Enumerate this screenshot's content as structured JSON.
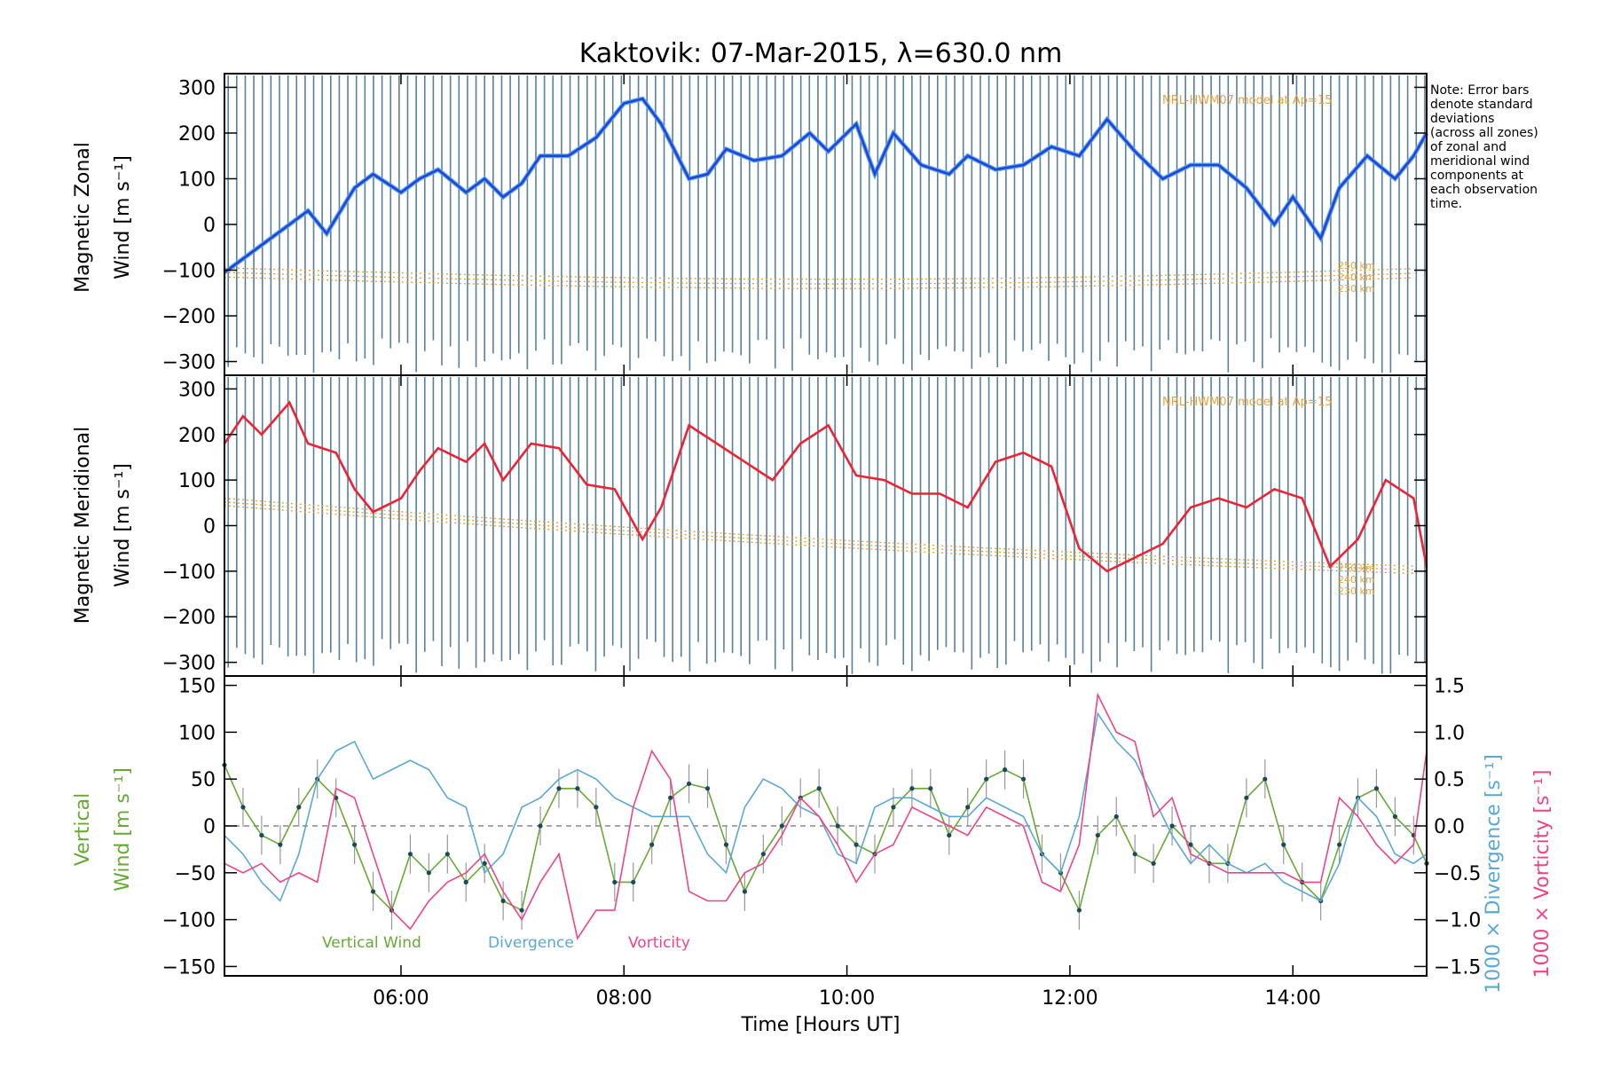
{
  "title": "Kaktovik: 07-Mar-2015, λ=630.0 nm",
  "note": [
    "Note: Error bars",
    "denote standard",
    "deviations",
    "(across all zones)",
    "of zonal and",
    "meridional wind",
    "components at",
    "each observation",
    "time."
  ],
  "model_label": "NRL-HWM07 model at Ap=15",
  "model_altitudes": [
    "250 km",
    "240 km",
    "230 km"
  ],
  "xlabel": "Time [Hours UT]",
  "xticks": [
    "06:00",
    "08:00",
    "10:00",
    "12:00",
    "14:00"
  ],
  "panels": {
    "zonal": {
      "ylabel_1": "Magnetic Zonal",
      "ylabel_2": "Wind [m s⁻¹]",
      "yticks": [
        "300",
        "200",
        "100",
        "0",
        "−100",
        "−200",
        "−300"
      ]
    },
    "meridional": {
      "ylabel_1": "Magnetic Meridional",
      "ylabel_2": "Wind [m s⁻¹]",
      "yticks": [
        "300",
        "200",
        "100",
        "0",
        "−100",
        "−200",
        "−300"
      ]
    },
    "vertical": {
      "ylabel_1": "Vertical",
      "ylabel_2": "Wind [m s⁻¹]",
      "yticks": [
        "150",
        "100",
        "50",
        "0",
        "−50",
        "−100",
        "−150"
      ],
      "right_ticks": [
        "1.5",
        "1.0",
        "0.5",
        "0.0",
        "−0.5",
        "−1.0",
        "−1.5"
      ],
      "right_label_div": "1000 × Divergence [s⁻¹]",
      "right_label_vort": "1000 × Vorticity [s⁻¹]",
      "legend": [
        "Vertical Wind",
        "Divergence",
        "Vorticity"
      ]
    }
  },
  "colors": {
    "zonal": "#2244dd",
    "zonal_light": "#5aa8e6",
    "meridional": "#ee2233",
    "vertical": "#66aa33",
    "divergence": "#5aa8d8",
    "vorticity": "#ee4488",
    "model": "#e8a23c",
    "errorbar": "#3a6a8c"
  },
  "chart_data": [
    {
      "type": "line",
      "title": "Kaktovik: 07-Mar-2015, λ=630.0 nm",
      "ylabel": "Magnetic Zonal Wind [m s⁻¹]",
      "ylim": [
        -330,
        330
      ],
      "xlim": [
        "04:25",
        "15:12"
      ],
      "x": [
        "04:25",
        "04:40",
        "05:00",
        "05:10",
        "05:20",
        "05:35",
        "05:45",
        "06:00",
        "06:10",
        "06:20",
        "06:35",
        "06:45",
        "06:55",
        "07:05",
        "07:15",
        "07:30",
        "07:45",
        "08:00",
        "08:10",
        "08:20",
        "08:35",
        "08:45",
        "08:55",
        "09:10",
        "09:25",
        "09:40",
        "09:50",
        "10:05",
        "10:15",
        "10:25",
        "10:40",
        "10:55",
        "11:05",
        "11:20",
        "11:35",
        "11:50",
        "12:05",
        "12:20",
        "12:35",
        "12:50",
        "13:05",
        "13:20",
        "13:35",
        "13:50",
        "14:00",
        "14:15",
        "14:25",
        "14:40",
        "14:55",
        "15:05",
        "15:12"
      ],
      "series": [
        {
          "values": [
            -105,
            -60,
            0,
            30,
            -20,
            80,
            110,
            70,
            100,
            120,
            70,
            100,
            60,
            90,
            150,
            150,
            190,
            265,
            275,
            220,
            100,
            110,
            165,
            140,
            150,
            200,
            160,
            220,
            110,
            200,
            130,
            110,
            150,
            120,
            130,
            170,
            150,
            230,
            160,
            100,
            130,
            130,
            80,
            0,
            60,
            -30,
            80,
            150,
            100,
            150,
            200
          ]
        }
      ]
    },
    {
      "type": "line",
      "ylabel": "Magnetic Meridional Wind [m s⁻¹]",
      "ylim": [
        -330,
        330
      ],
      "xlim": [
        "04:25",
        "15:12"
      ],
      "x": [
        "04:25",
        "04:35",
        "04:45",
        "05:00",
        "05:10",
        "05:25",
        "05:35",
        "05:45",
        "06:00",
        "06:10",
        "06:20",
        "06:35",
        "06:45",
        "06:55",
        "07:10",
        "07:25",
        "07:40",
        "07:55",
        "08:10",
        "08:20",
        "08:35",
        "08:50",
        "09:05",
        "09:20",
        "09:35",
        "09:50",
        "10:05",
        "10:20",
        "10:35",
        "10:50",
        "11:05",
        "11:20",
        "11:35",
        "11:50",
        "12:05",
        "12:20",
        "12:35",
        "12:50",
        "13:05",
        "13:20",
        "13:35",
        "13:50",
        "14:05",
        "14:20",
        "14:35",
        "14:50",
        "15:05",
        "15:12"
      ],
      "series": [
        {
          "values": [
            180,
            240,
            200,
            270,
            180,
            160,
            80,
            30,
            60,
            120,
            170,
            140,
            180,
            100,
            180,
            170,
            90,
            80,
            -30,
            40,
            220,
            180,
            140,
            100,
            180,
            220,
            110,
            100,
            70,
            70,
            40,
            140,
            160,
            130,
            -50,
            -100,
            -70,
            -40,
            40,
            60,
            40,
            80,
            60,
            -90,
            -30,
            100,
            60,
            -90
          ]
        }
      ]
    },
    {
      "type": "line",
      "ylabel": "Vertical Wind [m s⁻¹]",
      "ylim": [
        -160,
        160
      ],
      "xlim": [
        "04:25",
        "15:12"
      ],
      "x": [
        "04:25",
        "04:35",
        "04:45",
        "04:55",
        "05:05",
        "05:15",
        "05:25",
        "05:35",
        "05:45",
        "05:55",
        "06:05",
        "06:15",
        "06:25",
        "06:35",
        "06:45",
        "06:55",
        "07:05",
        "07:15",
        "07:25",
        "07:35",
        "07:45",
        "07:55",
        "08:05",
        "08:15",
        "08:25",
        "08:35",
        "08:45",
        "08:55",
        "09:05",
        "09:15",
        "09:25",
        "09:35",
        "09:45",
        "09:55",
        "10:05",
        "10:15",
        "10:25",
        "10:35",
        "10:45",
        "10:55",
        "11:05",
        "11:15",
        "11:25",
        "11:35",
        "11:45",
        "11:55",
        "12:05",
        "12:15",
        "12:25",
        "12:35",
        "12:45",
        "12:55",
        "13:05",
        "13:15",
        "13:25",
        "13:35",
        "13:45",
        "13:55",
        "14:05",
        "14:15",
        "14:25",
        "14:35",
        "14:45",
        "14:55",
        "15:05",
        "15:12"
      ],
      "series": [
        {
          "name": "Vertical Wind",
          "values": [
            65,
            20,
            -10,
            -20,
            20,
            50,
            30,
            -20,
            -70,
            -90,
            -30,
            -50,
            -30,
            -60,
            -40,
            -80,
            -90,
            0,
            40,
            40,
            20,
            -60,
            -60,
            -20,
            30,
            45,
            40,
            -20,
            -70,
            -30,
            0,
            30,
            40,
            0,
            -20,
            -30,
            20,
            40,
            40,
            -10,
            20,
            50,
            60,
            50,
            -30,
            -50,
            -90,
            -10,
            10,
            -30,
            -40,
            0,
            -20,
            -40,
            -40,
            30,
            50,
            -20,
            -60,
            -80,
            -20,
            30,
            40,
            10,
            -10,
            -40
          ]
        },
        {
          "name": "Divergence",
          "values": [
            -0.1,
            -0.3,
            -0.6,
            -0.8,
            -0.3,
            0.5,
            0.8,
            0.9,
            0.5,
            0.6,
            0.7,
            0.6,
            0.3,
            0.2,
            -0.5,
            -0.3,
            0.2,
            0.3,
            0.5,
            0.6,
            0.5,
            0.3,
            0.2,
            0.1,
            0.1,
            0.1,
            -0.3,
            -0.5,
            0.2,
            0.5,
            0.4,
            0.2,
            0.1,
            -0.3,
            -0.4,
            0.2,
            0.3,
            0.3,
            0.2,
            0.1,
            0.1,
            0.3,
            0.2,
            0.1,
            -0.3,
            -0.5,
            0.1,
            1.2,
            0.9,
            0.7,
            0.3,
            -0.1,
            -0.4,
            -0.2,
            -0.4,
            -0.5,
            -0.4,
            -0.6,
            -0.7,
            -0.8,
            -0.4,
            0.3,
            0.1,
            -0.3,
            -0.4,
            -0.3
          ]
        },
        {
          "name": "Vorticity",
          "values": [
            -0.4,
            -0.5,
            -0.4,
            -0.6,
            -0.5,
            -0.6,
            0.4,
            0.3,
            -0.3,
            -0.9,
            -1.1,
            -0.8,
            -0.6,
            -0.5,
            -0.3,
            -0.7,
            -1.0,
            -0.6,
            -0.3,
            -1.2,
            -0.9,
            -0.9,
            0.2,
            0.8,
            0.5,
            -0.7,
            -0.8,
            -0.8,
            -0.5,
            -0.4,
            -0.1,
            0.3,
            0.1,
            -0.2,
            -0.6,
            -0.3,
            -0.2,
            0.2,
            0.1,
            0.0,
            -0.1,
            0.2,
            0.1,
            0.0,
            -0.6,
            -0.7,
            -0.2,
            1.4,
            1.0,
            0.9,
            0.1,
            0.3,
            -0.3,
            -0.4,
            -0.5,
            -0.5,
            -0.5,
            -0.5,
            -0.6,
            -0.6,
            0.3,
            0.1,
            -0.2,
            -0.4,
            -0.2,
            0.8
          ]
        }
      ]
    }
  ]
}
